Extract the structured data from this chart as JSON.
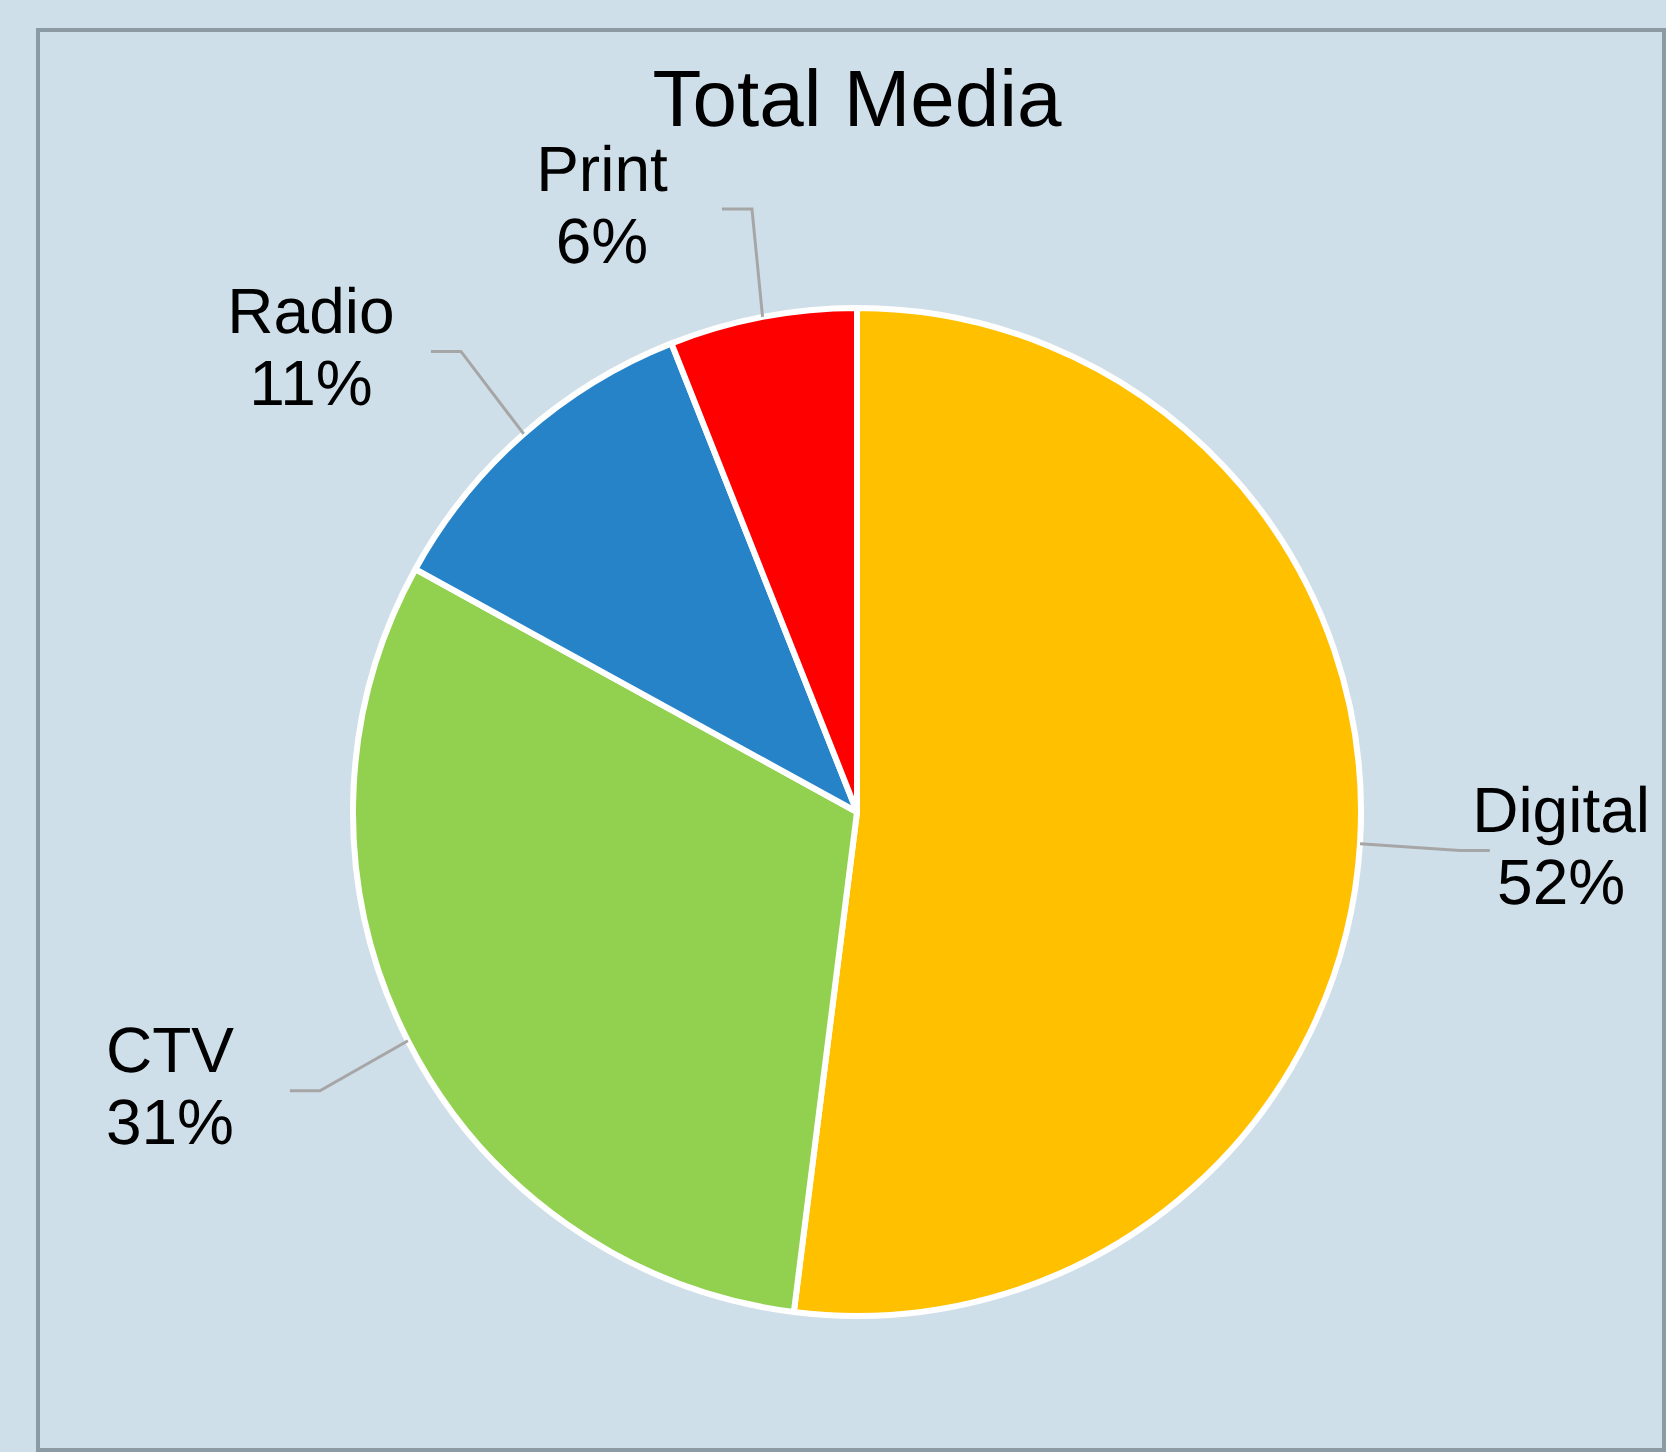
{
  "chart_data": {
    "type": "pie",
    "title": "Total Media",
    "categories": [
      "Digital",
      "CTV",
      "Radio",
      "Print"
    ],
    "values": [
      52,
      31,
      11,
      6
    ],
    "value_labels": [
      "52%",
      "31%",
      "11%",
      "6%"
    ],
    "colors": [
      "#ffc000",
      "#92d050",
      "#2783c8",
      "#ff0000"
    ],
    "legend": false
  }
}
